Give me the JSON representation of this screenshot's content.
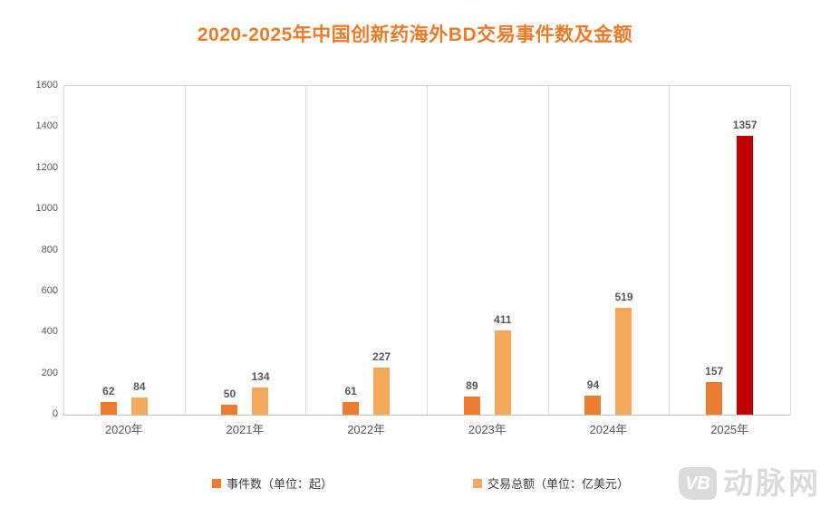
{
  "page": {
    "title": "2020-2025年中国创新药海外BD交易事件数及金额"
  },
  "chart_data": {
    "type": "bar",
    "title": "2020-2025年中国创新药海外BD交易事件数及金额",
    "categories": [
      "2020年",
      "2021年",
      "2022年",
      "2023年",
      "2024年",
      "2025年"
    ],
    "series": [
      {
        "name": "事件数（单位：起）",
        "color": "#ED7D31",
        "values": [
          62,
          50,
          61,
          89,
          94,
          157
        ]
      },
      {
        "name": "交易总额（单位：亿美元）",
        "color": "#F4A95C",
        "values": [
          84,
          134,
          227,
          411,
          519,
          1357
        ],
        "point_colors": {
          "5": "#C00000"
        }
      }
    ],
    "ylim": [
      0,
      1600
    ],
    "yticks": [
      0,
      200,
      400,
      600,
      800,
      1000,
      1200,
      1400,
      1600
    ],
    "value_labels": true,
    "grid": "vertical-category-separators",
    "legend_position": "bottom",
    "highlight_note": "2025年交易总额柱为红色高亮"
  },
  "watermark": {
    "logo": "VB",
    "text": "动脉网"
  },
  "colors": {
    "title": "#EE7B2A",
    "axis_text": "#595959",
    "value_label": "#595959",
    "gridline": "#D9D9D9",
    "baseline": "#BFBFBF",
    "highlight": "#C00000",
    "watermark": "#DBDBDB"
  }
}
